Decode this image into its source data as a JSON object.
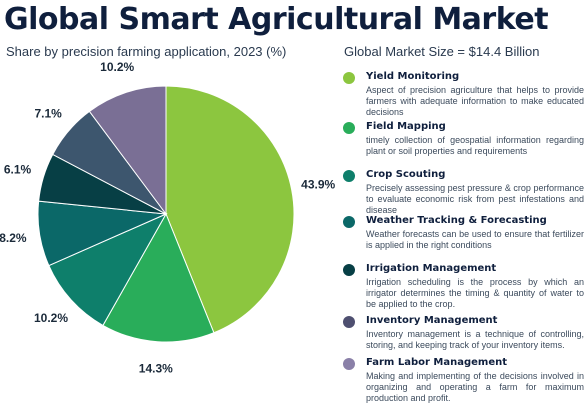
{
  "header": {
    "title": "Global Smart Agricultural Market",
    "subtitle": "Share by precision farming application, 2023 (%)",
    "market_size": "Global Market Size = $14.4 Billion"
  },
  "chart_data": {
    "type": "pie",
    "title": "Global Smart Agricultural Market",
    "subtitle": "Share by precision farming application, 2023 (%)",
    "slices": [
      {
        "label": "Yield Monitoring",
        "value": 43.9,
        "display": "43.9%",
        "color": "#8cc63f"
      },
      {
        "label": "Field Mapping",
        "value": 14.3,
        "display": "14.3%",
        "color": "#29ad5a"
      },
      {
        "label": "Crop Scouting",
        "value": 10.2,
        "display": "10.2%",
        "color": "#0e7f6b"
      },
      {
        "label": "Weather Tracking & Forecasting",
        "value": 8.2,
        "display": "8.2%",
        "color": "#0b6868"
      },
      {
        "label": "Irrigation Management",
        "value": 6.1,
        "display": "6.1%",
        "color": "#073f45"
      },
      {
        "label": "Inventory Management",
        "value": 7.1,
        "display": "7.1%",
        "color": "#3d566e"
      },
      {
        "label": "Farm Labor Management",
        "value": 10.2,
        "display": "10.2%",
        "color": "#7a6f95"
      }
    ]
  },
  "legend": [
    {
      "name": "Yield Monitoring",
      "color": "#8cc63f",
      "description": "Aspect of precision agriculture that helps to provide farmers with adequate information to make educated decisions"
    },
    {
      "name": "Field Mapping",
      "color": "#29ad5a",
      "description": "timely collection of geospatial information regarding plant or soil properties and requirements"
    },
    {
      "name": "Crop Scouting",
      "color": "#0e7f6b",
      "description": "Precisely assessing pest pressure & crop performance to evaluate economic risk from pest infestations and disease"
    },
    {
      "name": "Weather Tracking & Forecasting",
      "color": "#0b6868",
      "description": "Weather forecasts can be used to ensure that fertilizer is applied in the right conditions"
    },
    {
      "name": "Irrigation Management",
      "color": "#073f45",
      "description": "Irrigation scheduling is the process by which an irrigator determines the timing & quantity of water to be applied to the crop."
    },
    {
      "name": "Inventory Management",
      "color": "#4e4f70",
      "description": "Inventory management is a technique of controlling, storing, and keeping track of your inventory items."
    },
    {
      "name": "Farm Labor Management",
      "color": "#8a80a8",
      "description": "Making and implementing of the decisions involved in organizing and operating a farm for maximum production and profit."
    }
  ]
}
